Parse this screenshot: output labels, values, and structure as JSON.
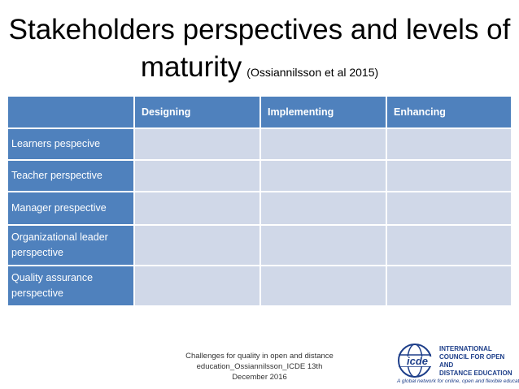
{
  "title": {
    "line1": "Stakeholders perspectives and levels of",
    "line2": "maturity",
    "citation": "(Ossiannilsson et al 2015)"
  },
  "table": {
    "columns": [
      "",
      "Designing",
      "Implementing",
      "Enhancing"
    ],
    "rows": [
      "Learners pespecive",
      "Teacher perspective",
      "Manager prespective",
      "Organizational leader perspective",
      "Quality assurance perspective"
    ]
  },
  "footer": {
    "line1": "Challenges for quality in open and distance",
    "line2": "education_Ossiannilsson_ICDE 13th",
    "line3": "December 2016"
  },
  "logo": {
    "mark": "icde",
    "line1": "INTERNATIONAL",
    "line2": "COUNCIL FOR OPEN AND",
    "line3": "DISTANCE EDUCATION",
    "tagline": "A global network for online, open and flexible education"
  },
  "colors": {
    "header_blue": "#4f81bd",
    "cell_light": "#d0d8e8",
    "logo_blue": "#1e3f8a"
  }
}
